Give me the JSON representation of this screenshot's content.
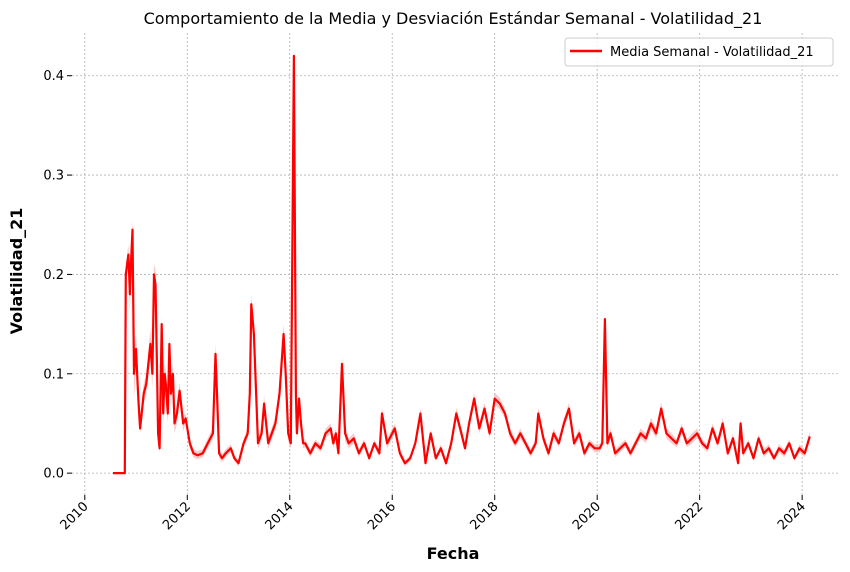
{
  "chart_data": {
    "type": "line",
    "title": "Comportamiento de la Media y Desviación Estándar Semanal - Volatilidad_21",
    "xlabel": "Fecha",
    "ylabel": "Volatilidad_21",
    "xlim": [
      2009.75,
      2024.7
    ],
    "ylim": [
      -0.022,
      0.443
    ],
    "x_ticks": [
      2010,
      2012,
      2014,
      2016,
      2018,
      2020,
      2022,
      2024
    ],
    "x_tick_labels": [
      "2010",
      "2012",
      "2014",
      "2016",
      "2018",
      "2020",
      "2022",
      "2024"
    ],
    "y_ticks": [
      0.0,
      0.1,
      0.2,
      0.3,
      0.4
    ],
    "y_tick_labels": [
      "0.0",
      "0.1",
      "0.2",
      "0.3",
      "0.4"
    ],
    "x_tick_rotation": 45,
    "grid": true,
    "legend_position": "top-right",
    "series": [
      {
        "name": "Media Semanal - Volatilidad_21",
        "color": "#ff0000",
        "band_color": "#f4a6a6",
        "x": [
          2010.55,
          2010.78,
          2010.8,
          2010.85,
          2010.88,
          2010.9,
          2010.93,
          2010.96,
          2011.0,
          2011.03,
          2011.05,
          2011.08,
          2011.12,
          2011.15,
          2011.2,
          2011.28,
          2011.32,
          2011.35,
          2011.38,
          2011.41,
          2011.43,
          2011.46,
          2011.5,
          2011.53,
          2011.56,
          2011.58,
          2011.62,
          2011.65,
          2011.68,
          2011.72,
          2011.75,
          2011.8,
          2011.85,
          2011.92,
          2011.97,
          2012.05,
          2012.12,
          2012.2,
          2012.3,
          2012.4,
          2012.5,
          2012.55,
          2012.58,
          2012.62,
          2012.68,
          2012.75,
          2012.85,
          2012.92,
          2013.0,
          2013.1,
          2013.18,
          2013.22,
          2013.25,
          2013.3,
          2013.38,
          2013.45,
          2013.5,
          2013.58,
          2013.65,
          2013.72,
          2013.8,
          2013.88,
          2013.92,
          2013.97,
          2014.02,
          2014.08,
          2014.12,
          2014.14,
          2014.18,
          2014.22,
          2014.26,
          2014.3,
          2014.4,
          2014.5,
          2014.6,
          2014.7,
          2014.8,
          2014.85,
          2014.9,
          2014.95,
          2015.02,
          2015.08,
          2015.15,
          2015.25,
          2015.35,
          2015.45,
          2015.55,
          2015.65,
          2015.75,
          2015.8,
          2015.9,
          2015.95,
          2016.05,
          2016.15,
          2016.25,
          2016.35,
          2016.45,
          2016.55,
          2016.65,
          2016.75,
          2016.85,
          2016.95,
          2017.05,
          2017.15,
          2017.25,
          2017.35,
          2017.42,
          2017.5,
          2017.6,
          2017.7,
          2017.8,
          2017.9,
          2018.0,
          2018.1,
          2018.2,
          2018.3,
          2018.4,
          2018.5,
          2018.6,
          2018.7,
          2018.8,
          2018.85,
          2018.95,
          2019.05,
          2019.15,
          2019.25,
          2019.35,
          2019.45,
          2019.55,
          2019.65,
          2019.75,
          2019.85,
          2019.95,
          2020.05,
          2020.1,
          2020.15,
          2020.2,
          2020.26,
          2020.35,
          2020.45,
          2020.55,
          2020.65,
          2020.75,
          2020.85,
          2020.95,
          2021.05,
          2021.15,
          2021.25,
          2021.35,
          2021.45,
          2021.55,
          2021.65,
          2021.75,
          2021.85,
          2021.95,
          2022.05,
          2022.15,
          2022.25,
          2022.35,
          2022.45,
          2022.55,
          2022.65,
          2022.75,
          2022.8,
          2022.85,
          2022.95,
          2023.05,
          2023.15,
          2023.25,
          2023.35,
          2023.45,
          2023.55,
          2023.65,
          2023.75,
          2023.85,
          2023.95,
          2024.05,
          2024.15
        ],
        "values": [
          0.0,
          0.0,
          0.2,
          0.22,
          0.18,
          0.21,
          0.245,
          0.1,
          0.125,
          0.09,
          0.07,
          0.045,
          0.065,
          0.08,
          0.09,
          0.13,
          0.1,
          0.2,
          0.19,
          0.1,
          0.04,
          0.025,
          0.15,
          0.06,
          0.1,
          0.09,
          0.06,
          0.13,
          0.08,
          0.1,
          0.05,
          0.06,
          0.083,
          0.05,
          0.055,
          0.03,
          0.02,
          0.018,
          0.02,
          0.03,
          0.04,
          0.12,
          0.08,
          0.02,
          0.015,
          0.02,
          0.025,
          0.015,
          0.01,
          0.03,
          0.04,
          0.08,
          0.17,
          0.14,
          0.03,
          0.04,
          0.07,
          0.03,
          0.04,
          0.05,
          0.08,
          0.14,
          0.1,
          0.04,
          0.03,
          0.42,
          0.08,
          0.04,
          0.075,
          0.05,
          0.03,
          0.03,
          0.02,
          0.03,
          0.025,
          0.04,
          0.045,
          0.03,
          0.04,
          0.02,
          0.11,
          0.04,
          0.03,
          0.035,
          0.02,
          0.03,
          0.015,
          0.03,
          0.02,
          0.06,
          0.03,
          0.035,
          0.045,
          0.02,
          0.01,
          0.015,
          0.03,
          0.06,
          0.01,
          0.04,
          0.015,
          0.025,
          0.01,
          0.03,
          0.06,
          0.04,
          0.025,
          0.05,
          0.075,
          0.045,
          0.065,
          0.04,
          0.075,
          0.07,
          0.06,
          0.04,
          0.03,
          0.04,
          0.03,
          0.02,
          0.03,
          0.06,
          0.035,
          0.02,
          0.04,
          0.03,
          0.05,
          0.065,
          0.03,
          0.04,
          0.02,
          0.03,
          0.025,
          0.025,
          0.03,
          0.155,
          0.03,
          0.04,
          0.02,
          0.025,
          0.03,
          0.02,
          0.03,
          0.04,
          0.035,
          0.05,
          0.04,
          0.065,
          0.04,
          0.035,
          0.03,
          0.045,
          0.03,
          0.035,
          0.04,
          0.03,
          0.025,
          0.045,
          0.03,
          0.05,
          0.02,
          0.035,
          0.01,
          0.05,
          0.02,
          0.03,
          0.015,
          0.035,
          0.02,
          0.025,
          0.015,
          0.025,
          0.02,
          0.03,
          0.015,
          0.025,
          0.02,
          0.037
        ],
        "std": [
          0.0,
          0.0,
          0.01,
          0.01,
          0.02,
          0.015,
          0.01,
          0.025,
          0.015,
          0.015,
          0.01,
          0.005,
          0.01,
          0.01,
          0.01,
          0.015,
          0.015,
          0.01,
          0.015,
          0.02,
          0.01,
          0.005,
          0.01,
          0.015,
          0.01,
          0.015,
          0.01,
          0.01,
          0.015,
          0.01,
          0.01,
          0.01,
          0.008,
          0.008,
          0.005,
          0.005,
          0.004,
          0.004,
          0.004,
          0.005,
          0.006,
          0.01,
          0.015,
          0.005,
          0.004,
          0.004,
          0.004,
          0.003,
          0.003,
          0.004,
          0.006,
          0.01,
          0.01,
          0.01,
          0.006,
          0.006,
          0.008,
          0.006,
          0.006,
          0.006,
          0.008,
          0.01,
          0.015,
          0.008,
          0.006,
          0.01,
          0.02,
          0.008,
          0.008,
          0.006,
          0.005,
          0.004,
          0.004,
          0.004,
          0.004,
          0.005,
          0.005,
          0.005,
          0.005,
          0.004,
          0.008,
          0.008,
          0.005,
          0.005,
          0.004,
          0.004,
          0.003,
          0.004,
          0.004,
          0.006,
          0.005,
          0.005,
          0.005,
          0.004,
          0.003,
          0.003,
          0.004,
          0.006,
          0.003,
          0.004,
          0.003,
          0.004,
          0.003,
          0.004,
          0.006,
          0.005,
          0.004,
          0.005,
          0.006,
          0.005,
          0.006,
          0.005,
          0.006,
          0.006,
          0.005,
          0.005,
          0.004,
          0.005,
          0.004,
          0.004,
          0.004,
          0.006,
          0.005,
          0.004,
          0.005,
          0.004,
          0.005,
          0.006,
          0.004,
          0.005,
          0.004,
          0.004,
          0.004,
          0.004,
          0.004,
          0.008,
          0.005,
          0.005,
          0.004,
          0.004,
          0.004,
          0.004,
          0.004,
          0.005,
          0.005,
          0.006,
          0.005,
          0.006,
          0.005,
          0.005,
          0.004,
          0.005,
          0.004,
          0.005,
          0.005,
          0.004,
          0.004,
          0.005,
          0.004,
          0.006,
          0.004,
          0.005,
          0.003,
          0.005,
          0.004,
          0.004,
          0.003,
          0.004,
          0.004,
          0.004,
          0.003,
          0.004,
          0.004,
          0.004,
          0.003,
          0.004,
          0.004,
          0.005
        ]
      }
    ]
  }
}
